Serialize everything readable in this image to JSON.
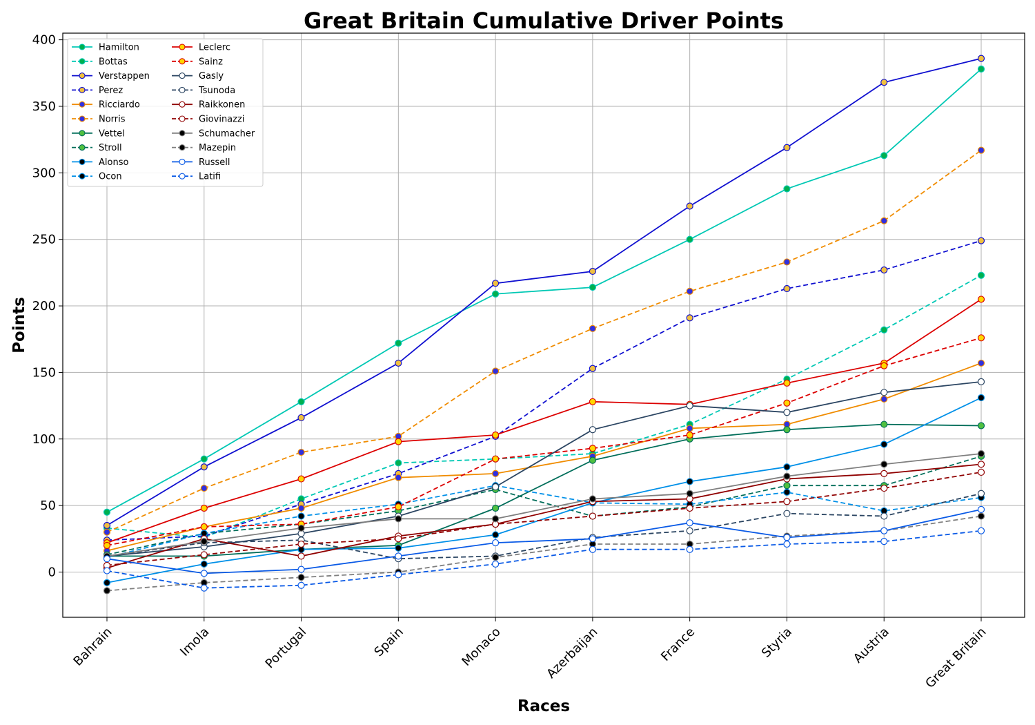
{
  "chart_data": {
    "type": "line",
    "title": "Great Britain Cumulative Driver Points",
    "xlabel": "Races",
    "ylabel": "Points",
    "categories": [
      "Bahrain",
      "Imola",
      "Portugal",
      "Spain",
      "Monaco",
      "Azerbaijan",
      "France",
      "Styria",
      "Austria",
      "Great Britain"
    ],
    "yticks": [
      0,
      50,
      100,
      150,
      200,
      250,
      300,
      350,
      400
    ],
    "ylim": [
      -34,
      405
    ],
    "grid": true,
    "legend_position": "top-left",
    "series": [
      {
        "name": "Hamilton",
        "color": "#00c8b4",
        "dash": "solid",
        "marker_fill": "#00b050",
        "values": [
          45,
          85,
          128,
          172,
          209,
          214,
          250,
          288,
          313,
          378
        ]
      },
      {
        "name": "Bottas",
        "color": "#00c8b4",
        "dash": "dashed",
        "marker_fill": "#00b050",
        "values": [
          33,
          26,
          55,
          82,
          85,
          89,
          111,
          145,
          182,
          223
        ]
      },
      {
        "name": "Verstappen",
        "color": "#1010d0",
        "dash": "solid",
        "marker_fill": "#f0c040",
        "values": [
          35,
          79,
          116,
          157,
          217,
          226,
          275,
          319,
          368,
          386
        ]
      },
      {
        "name": "Perez",
        "color": "#1010d0",
        "dash": "dashed",
        "marker_fill": "#f0c040",
        "values": [
          24,
          27,
          51,
          74,
          102,
          153,
          191,
          213,
          227,
          249
        ]
      },
      {
        "name": "Ricciardo",
        "color": "#f08c00",
        "dash": "solid",
        "marker_fill": "#3030e0",
        "values": [
          16,
          34,
          48,
          71,
          74,
          87,
          108,
          111,
          130,
          157
        ]
      },
      {
        "name": "Norris",
        "color": "#f08c00",
        "dash": "dashed",
        "marker_fill": "#3030e0",
        "values": [
          30,
          63,
          90,
          102,
          151,
          183,
          211,
          233,
          264,
          317
        ]
      },
      {
        "name": "Vettel",
        "color": "#006e5a",
        "dash": "solid",
        "marker_fill": "#50c040",
        "values": [
          12,
          12,
          17,
          20,
          48,
          84,
          100,
          107,
          111,
          110
        ]
      },
      {
        "name": "Stroll",
        "color": "#006e5a",
        "dash": "dashed",
        "marker_fill": "#50c040",
        "values": [
          13,
          29,
          36,
          46,
          62,
          42,
          49,
          65,
          65,
          87
        ]
      },
      {
        "name": "Alonso",
        "color": "#0090e8",
        "dash": "solid",
        "marker_fill": "#000000",
        "values": [
          -8,
          6,
          17,
          18,
          28,
          52,
          68,
          79,
          96,
          131
        ]
      },
      {
        "name": "Ocon",
        "color": "#0090e8",
        "dash": "dashed",
        "marker_fill": "#000000",
        "values": [
          11,
          29,
          42,
          51,
          65,
          52,
          51,
          60,
          46,
          56
        ]
      },
      {
        "name": "Leclerc",
        "color": "#dc0000",
        "dash": "solid",
        "marker_fill": "#ffd700",
        "values": [
          22,
          48,
          70,
          98,
          103,
          128,
          126,
          142,
          157,
          205
        ]
      },
      {
        "name": "Sainz",
        "color": "#dc0000",
        "dash": "dashed",
        "marker_fill": "#ffd700",
        "values": [
          20,
          34,
          36,
          49,
          85,
          93,
          103,
          127,
          155,
          176
        ]
      },
      {
        "name": "Gasly",
        "color": "#2b4562",
        "dash": "solid",
        "marker_fill": "#ffffff",
        "values": [
          12,
          19,
          29,
          42,
          64,
          107,
          125,
          120,
          135,
          143
        ]
      },
      {
        "name": "Tsunoda",
        "color": "#2b4562",
        "dash": "dashed",
        "marker_fill": "#ffffff",
        "values": [
          12,
          22,
          24,
          10,
          12,
          26,
          31,
          44,
          42,
          59
        ]
      },
      {
        "name": "Raikkonen",
        "color": "#900000",
        "dash": "solid",
        "marker_fill": "#ffffff",
        "values": [
          3,
          25,
          12,
          27,
          36,
          53,
          55,
          70,
          74,
          81
        ]
      },
      {
        "name": "Giovinazzi",
        "color": "#900000",
        "dash": "dashed",
        "marker_fill": "#ffffff",
        "values": [
          5,
          13,
          21,
          25,
          36,
          42,
          48,
          53,
          63,
          75
        ]
      },
      {
        "name": "Schumacher",
        "color": "#7f7f7f",
        "dash": "solid",
        "marker_fill": "#000000",
        "values": [
          12,
          23,
          33,
          40,
          40,
          55,
          59,
          72,
          81,
          89
        ]
      },
      {
        "name": "Mazepin",
        "color": "#7f7f7f",
        "dash": "dashed",
        "marker_fill": "#000000",
        "values": [
          -14,
          -8,
          -4,
          0,
          11,
          21,
          21,
          27,
          31,
          42
        ]
      },
      {
        "name": "Russell",
        "color": "#0a5ae6",
        "dash": "solid",
        "marker_fill": "#ffffff",
        "values": [
          10,
          -1,
          2,
          12,
          22,
          25,
          37,
          26,
          31,
          47
        ]
      },
      {
        "name": "Latifi",
        "color": "#0a5ae6",
        "dash": "dashed",
        "marker_fill": "#ffffff",
        "values": [
          1,
          -12,
          -10,
          -2,
          6,
          17,
          17,
          21,
          23,
          31
        ]
      }
    ]
  }
}
